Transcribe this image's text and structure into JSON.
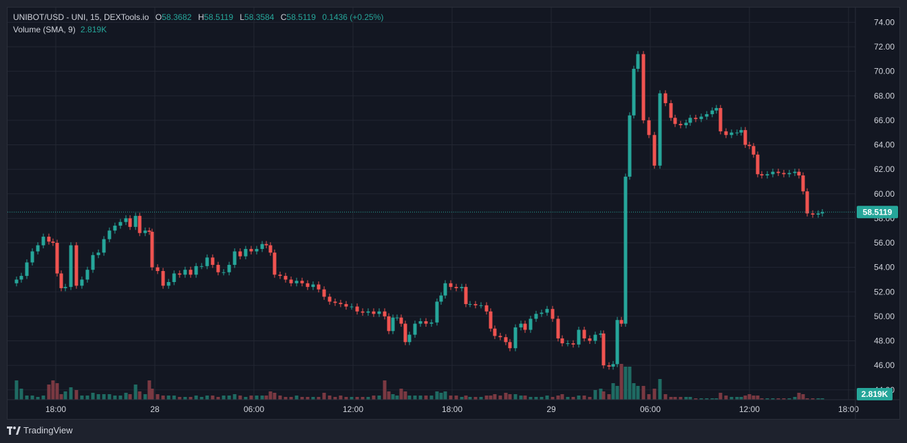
{
  "chart_data": {
    "type": "candlestick",
    "title": "UNIBOT/USD - UNI, 15, DEXTools.io",
    "ohlc_legend": {
      "open_label": "O",
      "open": "58.3682",
      "high_label": "H",
      "high": "58.5119",
      "low_label": "L",
      "low": "58.3584",
      "close_label": "C",
      "close": "58.5119",
      "change": "0.1436 (+0.25%)"
    },
    "volume_legend": {
      "label": "Volume (SMA, 9)",
      "value": "2.819K"
    },
    "last_price_label": "58.5119",
    "last_volume_label": "2.819K",
    "ylim": [
      43.2,
      75.2
    ],
    "y_ticks": [
      44,
      46,
      48,
      50,
      52,
      54,
      56,
      58,
      60,
      62,
      64,
      66,
      68,
      70,
      72,
      74
    ],
    "x_ticks": [
      {
        "label": "18:00",
        "x": 70
      },
      {
        "label": "28",
        "x": 214
      },
      {
        "label": "06:00",
        "x": 358
      },
      {
        "label": "12:00",
        "x": 502
      },
      {
        "label": "18:00",
        "x": 646
      },
      {
        "label": "29",
        "x": 790
      },
      {
        "label": "06:00",
        "x": 934
      },
      {
        "label": "12:00",
        "x": 1078
      },
      {
        "label": "18:00",
        "x": 1222
      }
    ],
    "last_price": 58.5119,
    "close_path": [
      [
        13,
        53.0
      ],
      [
        20,
        53.3
      ],
      [
        28,
        54.4
      ],
      [
        36,
        55.3
      ],
      [
        44,
        55.8
      ],
      [
        52,
        56.5
      ],
      [
        60,
        56.1
      ],
      [
        66,
        56.0
      ],
      [
        72,
        53.5
      ],
      [
        78,
        52.3
      ],
      [
        84,
        52.4
      ],
      [
        92,
        55.8
      ],
      [
        100,
        52.5
      ],
      [
        108,
        53.0
      ],
      [
        116,
        53.8
      ],
      [
        124,
        55.0
      ],
      [
        132,
        55.2
      ],
      [
        140,
        56.3
      ],
      [
        148,
        57.0
      ],
      [
        156,
        57.4
      ],
      [
        164,
        57.7
      ],
      [
        172,
        58.0
      ],
      [
        178,
        57.3
      ],
      [
        186,
        58.2
      ],
      [
        192,
        56.8
      ],
      [
        200,
        57.0
      ],
      [
        206,
        56.9
      ],
      [
        210,
        54.0
      ],
      [
        218,
        53.7
      ],
      [
        226,
        52.5
      ],
      [
        234,
        52.8
      ],
      [
        242,
        53.5
      ],
      [
        250,
        53.4
      ],
      [
        258,
        53.8
      ],
      [
        266,
        53.4
      ],
      [
        274,
        54.1
      ],
      [
        282,
        54.1
      ],
      [
        290,
        54.8
      ],
      [
        298,
        54.2
      ],
      [
        306,
        53.6
      ],
      [
        314,
        53.6
      ],
      [
        322,
        54.2
      ],
      [
        330,
        55.3
      ],
      [
        338,
        54.9
      ],
      [
        346,
        55.5
      ],
      [
        354,
        55.3
      ],
      [
        362,
        55.5
      ],
      [
        370,
        55.9
      ],
      [
        376,
        55.8
      ],
      [
        382,
        55.2
      ],
      [
        388,
        53.4
      ],
      [
        396,
        53.3
      ],
      [
        404,
        53.0
      ],
      [
        412,
        52.7
      ],
      [
        420,
        52.9
      ],
      [
        428,
        52.7
      ],
      [
        436,
        52.4
      ],
      [
        444,
        52.6
      ],
      [
        452,
        52.2
      ],
      [
        460,
        51.6
      ],
      [
        468,
        51.2
      ],
      [
        476,
        51.1
      ],
      [
        484,
        51.0
      ],
      [
        492,
        50.8
      ],
      [
        500,
        50.8
      ],
      [
        508,
        50.4
      ],
      [
        516,
        50.3
      ],
      [
        524,
        50.4
      ],
      [
        532,
        50.2
      ],
      [
        540,
        50.4
      ],
      [
        548,
        50.0
      ],
      [
        554,
        48.8
      ],
      [
        560,
        49.9
      ],
      [
        566,
        49.9
      ],
      [
        572,
        49.4
      ],
      [
        578,
        47.9
      ],
      [
        584,
        48.5
      ],
      [
        592,
        49.4
      ],
      [
        600,
        49.6
      ],
      [
        608,
        49.4
      ],
      [
        616,
        49.5
      ],
      [
        624,
        51.2
      ],
      [
        630,
        51.7
      ],
      [
        636,
        52.7
      ],
      [
        644,
        52.4
      ],
      [
        652,
        52.3
      ],
      [
        660,
        52.4
      ],
      [
        666,
        51.0
      ],
      [
        672,
        51.0
      ],
      [
        680,
        50.9
      ],
      [
        688,
        50.9
      ],
      [
        696,
        50.4
      ],
      [
        702,
        49.0
      ],
      [
        708,
        48.4
      ],
      [
        716,
        48.3
      ],
      [
        724,
        47.9
      ],
      [
        730,
        47.4
      ],
      [
        738,
        49.1
      ],
      [
        746,
        49.4
      ],
      [
        752,
        48.9
      ],
      [
        760,
        49.8
      ],
      [
        768,
        50.2
      ],
      [
        776,
        50.3
      ],
      [
        784,
        50.6
      ],
      [
        792,
        49.8
      ],
      [
        800,
        48.2
      ],
      [
        806,
        47.8
      ],
      [
        814,
        47.8
      ],
      [
        822,
        47.7
      ],
      [
        830,
        48.9
      ],
      [
        838,
        48.2
      ],
      [
        846,
        48.0
      ],
      [
        854,
        48.5
      ],
      [
        862,
        48.6
      ],
      [
        866,
        46.0
      ],
      [
        874,
        45.9
      ],
      [
        880,
        46.1
      ],
      [
        886,
        49.7
      ],
      [
        892,
        49.4
      ],
      [
        898,
        61.4
      ],
      [
        904,
        66.4
      ],
      [
        910,
        70.2
      ],
      [
        916,
        71.4
      ],
      [
        924,
        66.0
      ],
      [
        932,
        64.8
      ],
      [
        940,
        62.3
      ],
      [
        948,
        68.2
      ],
      [
        956,
        67.4
      ],
      [
        964,
        66.2
      ],
      [
        970,
        65.7
      ],
      [
        978,
        65.6
      ],
      [
        986,
        65.8
      ],
      [
        992,
        66.2
      ],
      [
        1000,
        66.1
      ],
      [
        1008,
        66.3
      ],
      [
        1016,
        66.5
      ],
      [
        1024,
        66.8
      ],
      [
        1030,
        67.0
      ],
      [
        1036,
        65.1
      ],
      [
        1044,
        64.8
      ],
      [
        1052,
        65.0
      ],
      [
        1060,
        65.0
      ],
      [
        1066,
        65.2
      ],
      [
        1072,
        64.0
      ],
      [
        1078,
        63.9
      ],
      [
        1084,
        63.2
      ],
      [
        1090,
        61.6
      ],
      [
        1096,
        61.5
      ],
      [
        1104,
        61.6
      ],
      [
        1112,
        61.8
      ],
      [
        1120,
        61.7
      ],
      [
        1128,
        61.6
      ],
      [
        1136,
        61.7
      ],
      [
        1144,
        61.8
      ],
      [
        1150,
        61.5
      ],
      [
        1156,
        60.2
      ],
      [
        1162,
        58.4
      ],
      [
        1170,
        58.3
      ],
      [
        1178,
        58.4
      ],
      [
        1184,
        58.5
      ]
    ],
    "volume_path": [
      [
        13,
        0.7
      ],
      [
        20,
        0.4
      ],
      [
        28,
        0.15
      ],
      [
        36,
        0.15
      ],
      [
        44,
        0.1
      ],
      [
        52,
        0.15
      ],
      [
        60,
        0.55
      ],
      [
        66,
        0.7
      ],
      [
        72,
        0.6
      ],
      [
        78,
        0.2
      ],
      [
        84,
        0.3
      ],
      [
        92,
        0.45
      ],
      [
        100,
        0.35
      ],
      [
        108,
        0.15
      ],
      [
        116,
        0.15
      ],
      [
        124,
        0.25
      ],
      [
        132,
        0.2
      ],
      [
        140,
        0.2
      ],
      [
        148,
        0.2
      ],
      [
        156,
        0.15
      ],
      [
        164,
        0.15
      ],
      [
        172,
        0.25
      ],
      [
        178,
        0.2
      ],
      [
        186,
        0.55
      ],
      [
        192,
        0.3
      ],
      [
        200,
        0.2
      ],
      [
        206,
        0.7
      ],
      [
        210,
        0.4
      ],
      [
        218,
        0.2
      ],
      [
        226,
        0.15
      ],
      [
        234,
        0.15
      ],
      [
        242,
        0.15
      ],
      [
        250,
        0.1
      ],
      [
        258,
        0.1
      ],
      [
        266,
        0.1
      ],
      [
        274,
        0.15
      ],
      [
        282,
        0.1
      ],
      [
        290,
        0.15
      ],
      [
        298,
        0.15
      ],
      [
        306,
        0.1
      ],
      [
        314,
        0.15
      ],
      [
        322,
        0.15
      ],
      [
        330,
        0.2
      ],
      [
        338,
        0.15
      ],
      [
        346,
        0.1
      ],
      [
        354,
        0.15
      ],
      [
        362,
        0.15
      ],
      [
        370,
        0.15
      ],
      [
        376,
        0.15
      ],
      [
        382,
        0.3
      ],
      [
        388,
        0.25
      ],
      [
        396,
        0.15
      ],
      [
        404,
        0.1
      ],
      [
        412,
        0.1
      ],
      [
        420,
        0.15
      ],
      [
        428,
        0.1
      ],
      [
        436,
        0.1
      ],
      [
        444,
        0.1
      ],
      [
        452,
        0.1
      ],
      [
        460,
        0.25
      ],
      [
        468,
        0.15
      ],
      [
        476,
        0.1
      ],
      [
        484,
        0.15
      ],
      [
        492,
        0.1
      ],
      [
        500,
        0.1
      ],
      [
        508,
        0.1
      ],
      [
        516,
        0.1
      ],
      [
        524,
        0.1
      ],
      [
        532,
        0.15
      ],
      [
        540,
        0.15
      ],
      [
        548,
        0.7
      ],
      [
        554,
        0.3
      ],
      [
        560,
        0.2
      ],
      [
        566,
        0.15
      ],
      [
        572,
        0.4
      ],
      [
        578,
        0.3
      ],
      [
        584,
        0.15
      ],
      [
        592,
        0.15
      ],
      [
        600,
        0.15
      ],
      [
        608,
        0.15
      ],
      [
        616,
        0.15
      ],
      [
        624,
        0.3
      ],
      [
        630,
        0.25
      ],
      [
        636,
        0.3
      ],
      [
        644,
        0.15
      ],
      [
        652,
        0.15
      ],
      [
        660,
        0.1
      ],
      [
        666,
        0.15
      ],
      [
        672,
        0.1
      ],
      [
        680,
        0.1
      ],
      [
        688,
        0.1
      ],
      [
        696,
        0.15
      ],
      [
        702,
        0.15
      ],
      [
        708,
        0.2
      ],
      [
        716,
        0.15
      ],
      [
        724,
        0.25
      ],
      [
        730,
        0.2
      ],
      [
        738,
        0.2
      ],
      [
        746,
        0.15
      ],
      [
        752,
        0.15
      ],
      [
        760,
        0.1
      ],
      [
        768,
        0.1
      ],
      [
        776,
        0.1
      ],
      [
        784,
        0.15
      ],
      [
        792,
        0.1
      ],
      [
        800,
        0.15
      ],
      [
        806,
        0.2
      ],
      [
        814,
        0.1
      ],
      [
        822,
        0.1
      ],
      [
        830,
        0.15
      ],
      [
        838,
        0.15
      ],
      [
        846,
        0.1
      ],
      [
        854,
        0.35
      ],
      [
        862,
        0.4
      ],
      [
        866,
        0.3
      ],
      [
        874,
        0.2
      ],
      [
        880,
        0.6
      ],
      [
        886,
        0.5
      ],
      [
        892,
        1.3
      ],
      [
        898,
        1.2
      ],
      [
        904,
        1.2
      ],
      [
        910,
        0.6
      ],
      [
        916,
        0.5
      ],
      [
        924,
        0.5
      ],
      [
        932,
        0.2
      ],
      [
        940,
        0.4
      ],
      [
        948,
        0.75
      ],
      [
        956,
        0.2
      ],
      [
        964,
        0.1
      ],
      [
        970,
        0.1
      ],
      [
        978,
        0.1
      ],
      [
        986,
        0.1
      ],
      [
        992,
        0.1
      ],
      [
        1000,
        0.05
      ],
      [
        1008,
        0.05
      ],
      [
        1016,
        0.05
      ],
      [
        1024,
        0.05
      ],
      [
        1030,
        0.05
      ],
      [
        1036,
        0.25
      ],
      [
        1044,
        0.15
      ],
      [
        1052,
        0.1
      ],
      [
        1060,
        0.1
      ],
      [
        1066,
        0.1
      ],
      [
        1072,
        0.15
      ],
      [
        1078,
        0.2
      ],
      [
        1084,
        0.15
      ],
      [
        1090,
        0.15
      ],
      [
        1096,
        0.05
      ],
      [
        1104,
        0.05
      ],
      [
        1112,
        0.05
      ],
      [
        1120,
        0.05
      ],
      [
        1128,
        0.05
      ],
      [
        1136,
        0.05
      ],
      [
        1144,
        0.1
      ],
      [
        1150,
        0.25
      ],
      [
        1156,
        0.2
      ],
      [
        1162,
        0.05
      ],
      [
        1170,
        0.05
      ],
      [
        1178,
        0.05
      ],
      [
        1184,
        0.05
      ]
    ],
    "colors": {
      "up": "#26a69a",
      "down": "#ef5350",
      "up_volume": "#1f6b63",
      "down_volume": "#7a3942",
      "grid": "#232733",
      "background": "#131722",
      "axis_text": "#d1d4dc"
    }
  },
  "footer": {
    "brand": "TradingView"
  }
}
